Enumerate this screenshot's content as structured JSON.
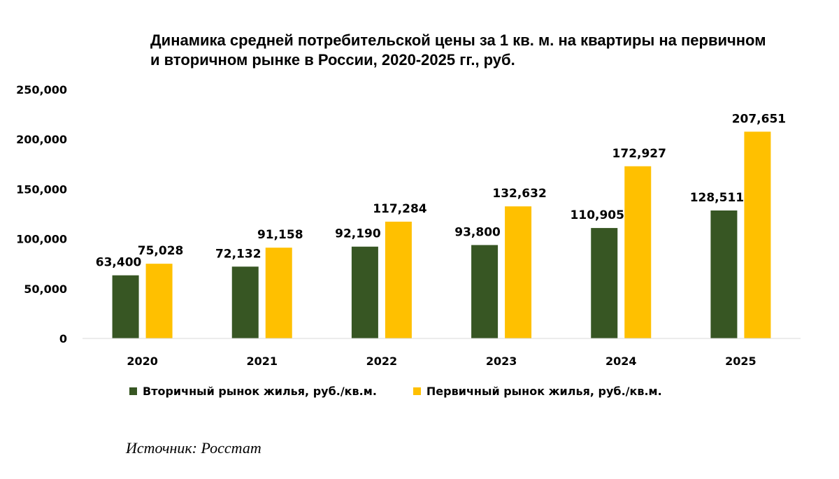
{
  "chart_data": {
    "type": "bar",
    "title": "Динамика средней потребительской цены за 1 кв. м. на квартиры на первичном и вторичном рынке в России, 2020-2025 гг., руб.",
    "categories": [
      "2020",
      "2021",
      "2022",
      "2023",
      "2024",
      "2025"
    ],
    "series": [
      {
        "name": "Вторичный рынок жилья, руб./кв.м.",
        "color": "#375623",
        "values": [
          63400,
          72132,
          92190,
          93800,
          110905,
          128511
        ]
      },
      {
        "name": "Первичный рынок жилья, руб./кв.м.",
        "color": "#FFC000",
        "values": [
          75028,
          91158,
          117284,
          132632,
          172927,
          207651
        ]
      }
    ],
    "data_labels": [
      [
        "63,400",
        "72,132",
        "92,190",
        "93,800",
        "110,905",
        "128,511"
      ],
      [
        "75,028",
        "91,158",
        "117,284",
        "132,632",
        "172,927",
        "207,651"
      ]
    ],
    "yticks": [
      0,
      50000,
      100000,
      150000,
      200000,
      250000
    ],
    "ytick_labels": [
      "0",
      "50,000",
      "100,000",
      "150,000",
      "200,000",
      "250,000"
    ],
    "ylim": [
      0,
      250000
    ],
    "legend_position": "bottom",
    "grid": false
  },
  "source": "Источник: Росстат"
}
